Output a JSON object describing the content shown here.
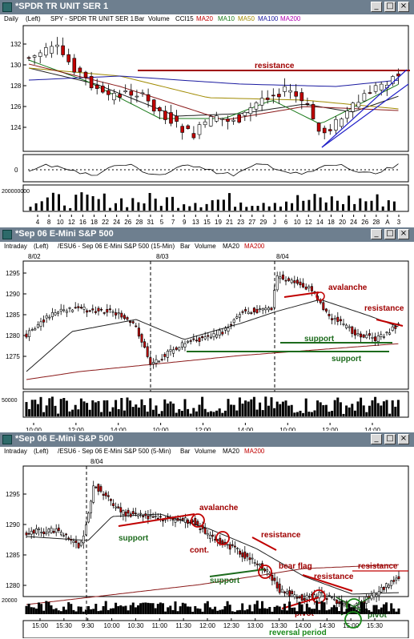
{
  "colors": {
    "titlebar": "#6e7f8f",
    "up": "#ffffff",
    "down": "#c00000",
    "resistance": "#a00000",
    "support": "#1d6b1d",
    "channel": "#2020c8",
    "ma20": "#202020",
    "ma10": "#1a7a1a",
    "ma50": "#a08a00",
    "ma100": "#1a1aa0",
    "ma200": "#8b1a1a",
    "reversal": "#1a8a1a"
  },
  "windows": [
    {
      "title": "*SPDR TR UNIT SER 1",
      "info": {
        "interval": "Daily",
        "scale": "(Left)",
        "symbol": "SPY - SPDR TR UNIT SER 1",
        "type": "Bar",
        "volume": "Volume",
        "ind1": "CCI15",
        "ma_a": "MA20",
        "ma_b": "MA10",
        "ma_c": "MA50",
        "ma_d": "MA100",
        "ma_e": "MA200"
      },
      "y_ticks": [
        "132",
        "130",
        "128",
        "126",
        "124"
      ],
      "cci_ticks": [
        "0"
      ],
      "volume_tick": "200000000",
      "x_ticks": [
        "4",
        "8",
        "10",
        "12",
        "16",
        "18",
        "22",
        "24",
        "26",
        "28",
        "31",
        "5",
        "7",
        "9",
        "13",
        "15",
        "19",
        "21",
        "23",
        "27",
        "29",
        "J",
        "6",
        "10",
        "12",
        "14",
        "18",
        "20",
        "24",
        "26",
        "28",
        "A",
        "3"
      ],
      "annotations": {
        "resistance": "resistance"
      },
      "buttons": {
        "minimize": "_",
        "maximize": "□",
        "close": "×"
      }
    },
    {
      "title": "*Sep 06  E-Mini S&P 500",
      "info": {
        "interval": "Intraday",
        "scale": "(Left)",
        "symbol": "/ESU6 - Sep 06  E-Mini S&P 500 (15-Min)",
        "type": "Bar",
        "volume": "Volume",
        "ma_a": "MA20",
        "ma_e": "MA200"
      },
      "y_ticks": [
        "1295",
        "1290",
        "1285",
        "1280",
        "1275"
      ],
      "volume_tick": "50000",
      "date_labels": [
        "8/02",
        "8/03",
        "8/04"
      ],
      "x_ticks": [
        "10:00",
        "12:00",
        "14:00",
        "10:00",
        "12:00",
        "14:00",
        "10:00",
        "12:00",
        "14:00"
      ],
      "annotations": {
        "avalanche": "avalanche",
        "resistance": "resistance",
        "support1": "support",
        "support2": "support"
      },
      "buttons": {
        "minimize": "_",
        "maximize": "□",
        "close": "×"
      }
    },
    {
      "title": "*Sep 06  E-Mini S&P 500",
      "info": {
        "interval": "Intraday",
        "scale": "(Left)",
        "symbol": "/ESU6 - Sep 06  E-Mini S&P 500 (5-Min)",
        "type": "Bar",
        "volume": "Volume",
        "ma_a": "MA20",
        "ma_e": "MA200"
      },
      "y_ticks": [
        "1295",
        "1290",
        "1285",
        "1280"
      ],
      "volume_tick": "20000",
      "date_labels": [
        "8/04"
      ],
      "x_ticks": [
        "15:00",
        "15:30",
        "9:30",
        "10:00",
        "10:30",
        "11:00",
        "11:30",
        "12:00",
        "12:30",
        "13:00",
        "13:30",
        "14:00",
        "14:30",
        "15:00",
        "15:30"
      ],
      "annotations": {
        "avalanche": "avalanche",
        "support1": "support",
        "cont": "cont.",
        "resistance1": "resistance",
        "support2": "support",
        "bear_flag": "bear flag",
        "resistance2": "resistance",
        "resistance3": "resistance",
        "pivot1": "pivot",
        "pivot2": "pivot",
        "reversal": "reversal period"
      },
      "buttons": {
        "minimize": "_",
        "maximize": "□",
        "close": "×"
      }
    }
  ]
}
